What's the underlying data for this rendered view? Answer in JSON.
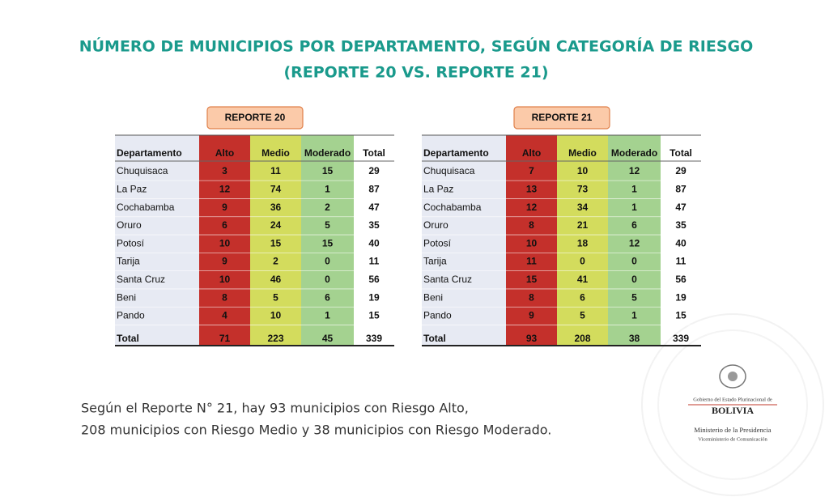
{
  "title": [
    "NÚMERO DE MUNICIPIOS POR DEPARTAMENTO, SEGÚN CATEGORÍA DE RIESGO",
    "(REPORTE 20 VS. REPORTE 21)"
  ],
  "tables": [
    {
      "label": "REPORTE 20",
      "headers": [
        "Departamento",
        "Alto",
        "Medio",
        "Moderado",
        "Total"
      ],
      "rows": [
        [
          "Chuquisaca",
          3,
          11,
          15,
          29
        ],
        [
          "La Paz",
          12,
          74,
          1,
          87
        ],
        [
          "Cochabamba",
          9,
          36,
          2,
          47
        ],
        [
          "Oruro",
          6,
          24,
          5,
          35
        ],
        [
          "Potosí",
          10,
          15,
          15,
          40
        ],
        [
          "Tarija",
          9,
          2,
          0,
          11
        ],
        [
          "Santa Cruz",
          10,
          46,
          0,
          56
        ],
        [
          "Beni",
          8,
          5,
          6,
          19
        ],
        [
          "Pando",
          4,
          10,
          1,
          15
        ]
      ],
      "total_row": [
        "Total",
        71,
        223,
        45,
        339
      ]
    },
    {
      "label": "REPORTE 21",
      "headers": [
        "Departamento",
        "Alto",
        "Medio",
        "Moderado",
        "Total"
      ],
      "rows": [
        [
          "Chuquisaca",
          7,
          10,
          12,
          29
        ],
        [
          "La Paz",
          13,
          73,
          1,
          87
        ],
        [
          "Cochabamba",
          12,
          34,
          1,
          47
        ],
        [
          "Oruro",
          8,
          21,
          6,
          35
        ],
        [
          "Potosí",
          10,
          18,
          12,
          40
        ],
        [
          "Tarija",
          11,
          0,
          0,
          11
        ],
        [
          "Santa Cruz",
          15,
          41,
          0,
          56
        ],
        [
          "Beni",
          8,
          6,
          5,
          19
        ],
        [
          "Pando",
          9,
          5,
          1,
          15
        ]
      ],
      "total_row": [
        "Total",
        93,
        208,
        38,
        339
      ]
    }
  ],
  "footer": [
    "Según el Reporte N° 21, hay 93 municipios con Riesgo Alto,",
    "208 municipios con Riesgo Medio y 38 municipios con Riesgo Moderado."
  ],
  "logo": [
    "Gobierno del Estado Plurinacional de",
    "BOLIVIA",
    "Ministerio de la Presidencia",
    "Viceministerio de Comunicación"
  ]
}
